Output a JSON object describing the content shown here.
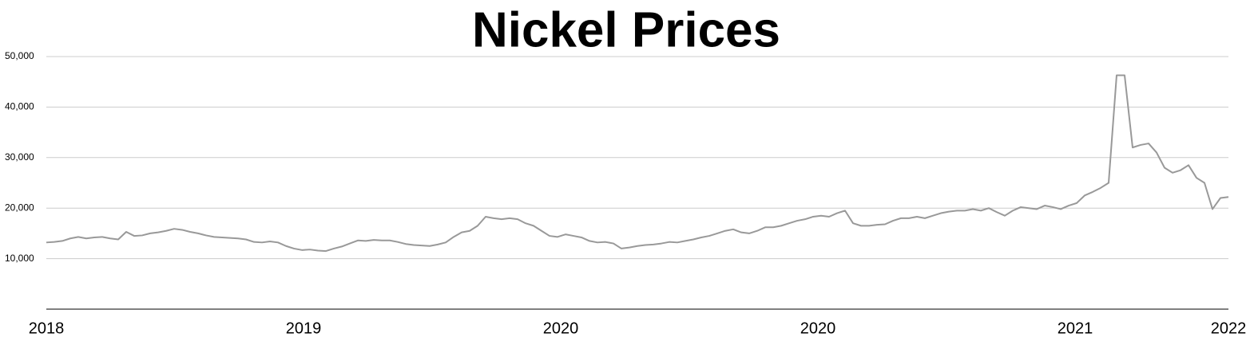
{
  "chart_data": {
    "type": "line",
    "title": "Nickel Prices",
    "x": [
      0,
      1,
      2,
      3,
      4,
      5,
      6,
      7,
      8,
      9,
      10,
      11,
      12,
      13,
      14,
      15,
      16,
      17,
      18,
      19,
      20,
      21,
      22,
      23,
      24,
      25,
      26,
      27,
      28,
      29,
      30,
      31,
      32,
      33,
      34,
      35,
      36,
      37,
      38,
      39,
      40,
      41,
      42,
      43,
      44,
      45,
      46,
      47,
      48,
      49,
      50,
      51,
      52,
      53,
      54,
      55,
      56,
      57,
      58,
      59,
      60,
      61,
      62,
      63,
      64,
      65,
      66,
      67,
      68,
      69,
      70,
      71,
      72,
      73,
      74,
      75,
      76,
      77,
      78,
      79,
      80,
      81,
      82,
      83,
      84,
      85,
      86,
      87,
      88,
      89,
      90,
      91,
      92,
      93,
      94,
      95,
      96,
      97,
      98,
      99,
      100,
      101,
      102,
      103,
      104,
      105,
      106,
      107,
      108,
      109,
      110,
      111,
      112,
      113,
      114,
      115,
      116,
      117,
      118,
      119,
      120,
      121,
      122,
      123,
      124,
      125,
      126,
      127,
      128,
      129,
      130,
      131,
      132,
      133,
      134,
      135,
      136,
      137,
      138,
      139,
      140,
      141,
      142,
      143,
      144,
      145,
      146,
      147,
      148
    ],
    "series": [
      {
        "name": "Nickel",
        "color": "#999999",
        "values": [
          13200,
          13300,
          13500,
          14000,
          14300,
          14000,
          14200,
          14300,
          14000,
          13800,
          15300,
          14500,
          14600,
          15000,
          15200,
          15500,
          15900,
          15700,
          15300,
          15000,
          14600,
          14300,
          14200,
          14100,
          14000,
          13800,
          13300,
          13200,
          13400,
          13200,
          12500,
          12000,
          11700,
          11800,
          11600,
          11500,
          12000,
          12400,
          13000,
          13600,
          13500,
          13700,
          13600,
          13600,
          13300,
          12900,
          12700,
          12600,
          12500,
          12800,
          13200,
          14300,
          15200,
          15500,
          16500,
          18300,
          18000,
          17800,
          18000,
          17800,
          17000,
          16500,
          15500,
          14500,
          14300,
          14800,
          14500,
          14200,
          13500,
          13200,
          13300,
          13000,
          12000,
          12200,
          12500,
          12700,
          12800,
          13000,
          13300,
          13200,
          13500,
          13800,
          14200,
          14500,
          15000,
          15500,
          15800,
          15200,
          15000,
          15500,
          16200,
          16200,
          16500,
          17000,
          17500,
          17800,
          18300,
          18500,
          18300,
          19000,
          19500,
          17000,
          16500,
          16500,
          16700,
          16800,
          17500,
          18000,
          18000,
          18300,
          18000,
          18500,
          19000,
          19300,
          19500,
          19500,
          19800,
          19500,
          20000,
          19200,
          18500,
          19500,
          20200,
          20000,
          19800,
          20500,
          20200,
          19800,
          20500,
          21000,
          22500,
          23200,
          24000,
          25000,
          46300,
          46300,
          32000,
          32500,
          32800,
          31000,
          28000,
          27000,
          27500,
          28500,
          26000,
          25000,
          19800,
          22000,
          22200
        ]
      }
    ],
    "xlim": [
      0,
      148
    ],
    "xticks": [
      {
        "value": 0,
        "label": "2018"
      },
      {
        "value": 32.2,
        "label": "2019"
      },
      {
        "value": 64.4,
        "label": "2020"
      },
      {
        "value": 96.6,
        "label": "2020"
      },
      {
        "value": 128.8,
        "label": "2021"
      },
      {
        "value": 148,
        "label": "2022"
      }
    ],
    "ylim": [
      0,
      50000
    ],
    "yticks": [
      {
        "value": 10000,
        "label": "10,000"
      },
      {
        "value": 20000,
        "label": "20,000"
      },
      {
        "value": 30000,
        "label": "30,000"
      },
      {
        "value": 40000,
        "label": "40,000"
      },
      {
        "value": 50000,
        "label": "50,000"
      }
    ],
    "grid": true
  }
}
